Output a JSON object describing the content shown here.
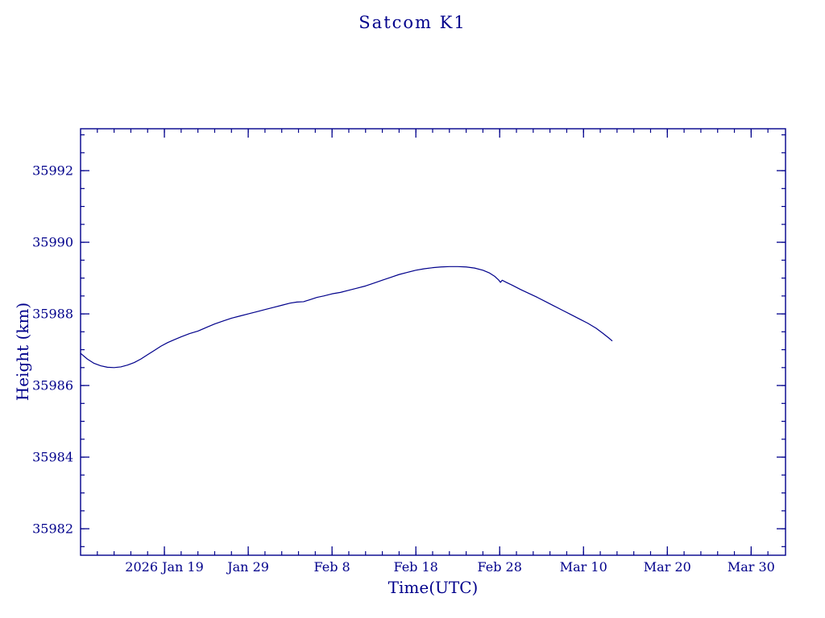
{
  "chart_data": {
    "type": "line",
    "title": "Satcom K1",
    "xlabel": "Time(UTC)",
    "ylabel": "Height (km)",
    "line_color": "#00008b",
    "legend": "none",
    "grid": false,
    "x_domain_days": [
      0,
      84.1
    ],
    "x_ticks": [
      {
        "day": 10,
        "label": "2026 Jan 19"
      },
      {
        "day": 20,
        "label": "Jan 29"
      },
      {
        "day": 30,
        "label": "Feb 8"
      },
      {
        "day": 40,
        "label": "Feb 18"
      },
      {
        "day": 50,
        "label": "Feb 28"
      },
      {
        "day": 60,
        "label": "Mar 10"
      },
      {
        "day": 70,
        "label": "Mar 20"
      },
      {
        "day": 80,
        "label": "Mar 30"
      }
    ],
    "x_minor_step_days": 2,
    "ylim": [
      35981.26,
      35993.17
    ],
    "y_ticks": [
      35982,
      35984,
      35986,
      35988,
      35990,
      35992
    ],
    "y_minor_step": 0.5,
    "points": [
      [
        0.0,
        35986.9
      ],
      [
        0.8,
        35986.74
      ],
      [
        1.6,
        35986.62
      ],
      [
        2.4,
        35986.55
      ],
      [
        3.2,
        35986.51
      ],
      [
        4.0,
        35986.5
      ],
      [
        4.8,
        35986.52
      ],
      [
        5.6,
        35986.57
      ],
      [
        6.4,
        35986.64
      ],
      [
        7.2,
        35986.74
      ],
      [
        8.0,
        35986.86
      ],
      [
        8.8,
        35986.98
      ],
      [
        9.6,
        35987.1
      ],
      [
        10.4,
        35987.2
      ],
      [
        11.2,
        35987.28
      ],
      [
        12.0,
        35987.36
      ],
      [
        13.0,
        35987.45
      ],
      [
        14.0,
        35987.52
      ],
      [
        15.0,
        35987.62
      ],
      [
        16.0,
        35987.72
      ],
      [
        17.0,
        35987.8
      ],
      [
        18.0,
        35987.88
      ],
      [
        19.0,
        35987.94
      ],
      [
        20.0,
        35988.0
      ],
      [
        21.0,
        35988.06
      ],
      [
        22.0,
        35988.12
      ],
      [
        23.0,
        35988.18
      ],
      [
        24.0,
        35988.24
      ],
      [
        25.0,
        35988.3
      ],
      [
        25.8,
        35988.33
      ],
      [
        26.6,
        35988.34
      ],
      [
        27.4,
        35988.4
      ],
      [
        28.2,
        35988.46
      ],
      [
        29.0,
        35988.5
      ],
      [
        30.0,
        35988.56
      ],
      [
        31.0,
        35988.6
      ],
      [
        32.0,
        35988.66
      ],
      [
        33.0,
        35988.72
      ],
      [
        34.0,
        35988.78
      ],
      [
        35.0,
        35988.86
      ],
      [
        36.0,
        35988.94
      ],
      [
        37.0,
        35989.02
      ],
      [
        38.0,
        35989.1
      ],
      [
        39.0,
        35989.16
      ],
      [
        40.0,
        35989.22
      ],
      [
        41.0,
        35989.26
      ],
      [
        42.0,
        35989.29
      ],
      [
        43.0,
        35989.31
      ],
      [
        44.0,
        35989.32
      ],
      [
        45.0,
        35989.32
      ],
      [
        46.0,
        35989.31
      ],
      [
        47.0,
        35989.28
      ],
      [
        48.0,
        35989.22
      ],
      [
        48.8,
        35989.14
      ],
      [
        49.4,
        35989.05
      ],
      [
        49.9,
        35988.94
      ],
      [
        50.1,
        35988.88
      ],
      [
        50.3,
        35988.94
      ],
      [
        50.8,
        35988.88
      ],
      [
        51.5,
        35988.8
      ],
      [
        52.5,
        35988.68
      ],
      [
        53.5,
        35988.57
      ],
      [
        54.5,
        35988.46
      ],
      [
        55.5,
        35988.34
      ],
      [
        56.5,
        35988.22
      ],
      [
        57.5,
        35988.1
      ],
      [
        58.5,
        35987.98
      ],
      [
        59.5,
        35987.86
      ],
      [
        60.5,
        35987.74
      ],
      [
        61.5,
        35987.6
      ],
      [
        62.3,
        35987.46
      ],
      [
        63.0,
        35987.33
      ],
      [
        63.4,
        35987.25
      ]
    ]
  }
}
